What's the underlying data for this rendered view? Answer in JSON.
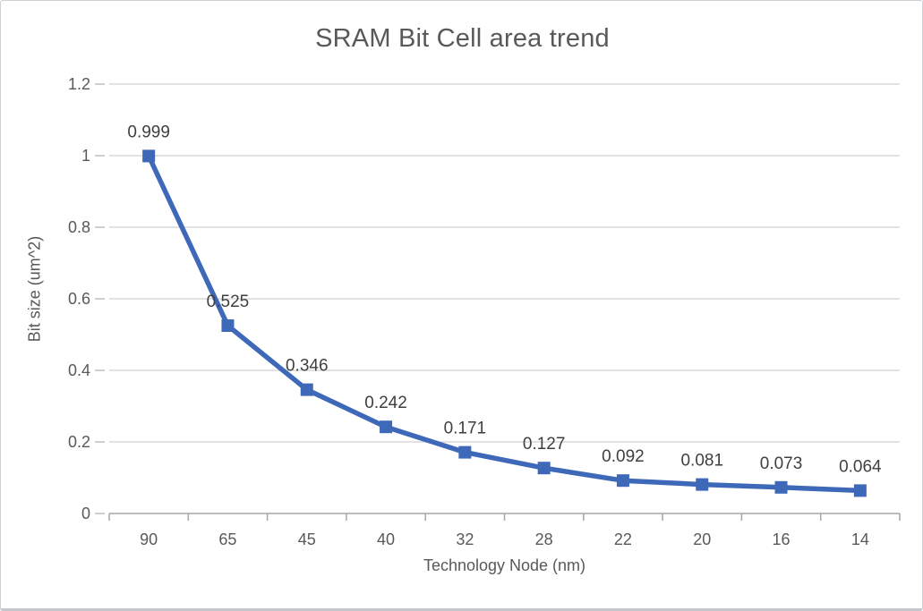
{
  "page": {
    "background": "#ffffff",
    "border_color": "#cdd0d4"
  },
  "chart_data": {
    "type": "line",
    "title": "SRAM Bit Cell area trend",
    "xlabel": "Technology Node (nm)",
    "ylabel": "Bit size (um^2)",
    "categories": [
      "90",
      "65",
      "45",
      "40",
      "32",
      "28",
      "22",
      "20",
      "16",
      "14"
    ],
    "series": [
      {
        "name": "Bit size",
        "values": [
          0.999,
          0.525,
          0.346,
          0.242,
          0.171,
          0.127,
          0.092,
          0.081,
          0.073,
          0.064
        ],
        "point_labels": [
          "0.999",
          "0.525",
          "0.346",
          "0.242",
          "0.171",
          "0.127",
          "0.092",
          "0.081",
          "0.073",
          "0.064"
        ]
      }
    ],
    "ylim": [
      0,
      1.2
    ],
    "ytick_labels": [
      "0",
      "0.2",
      "0.4",
      "0.6",
      "0.8",
      "1",
      "1.2"
    ],
    "grid": "horizontal",
    "legend": "none",
    "marker": "square",
    "colors": {
      "line": "#3e68b8",
      "marker": "#3e68b8",
      "gridline": "#d9d9d9",
      "axis_line": "#a6a6a6",
      "tick_mark": "#bfbfbf",
      "tick_text": "#595959",
      "title_text": "#595959",
      "data_label_text": "#3f3f3f"
    }
  }
}
